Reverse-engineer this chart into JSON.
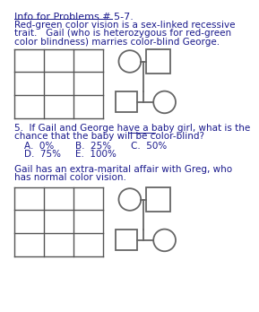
{
  "title_line": "Info for Problems # 5-7.",
  "para1_lines": [
    "Red-green color vision is a sex-linked recessive",
    "trait.   Gail (who is heterozygous for red-green",
    "color blindness) marries color-blind George."
  ],
  "q5_line1": "5.  If Gail and George have a baby girl, what is the",
  "q5_line2": "chance that the baby will be color-blind?",
  "q5_ans_row1": [
    [
      "A.  0%",
      22
    ],
    [
      "B.  25%",
      95
    ],
    [
      "C.  50%",
      175
    ]
  ],
  "q5_ans_row2": [
    [
      "D.  75%",
      22
    ],
    [
      "E.  100%",
      95
    ]
  ],
  "gail_lines": [
    "Gail has an extra-marital affair with Greg, who",
    "has normal color vision."
  ],
  "bg_color": "#ffffff",
  "text_color": "#1a1a8c",
  "grid_color": "#555555",
  "ped_color": "#666666",
  "font_size": 7.5
}
